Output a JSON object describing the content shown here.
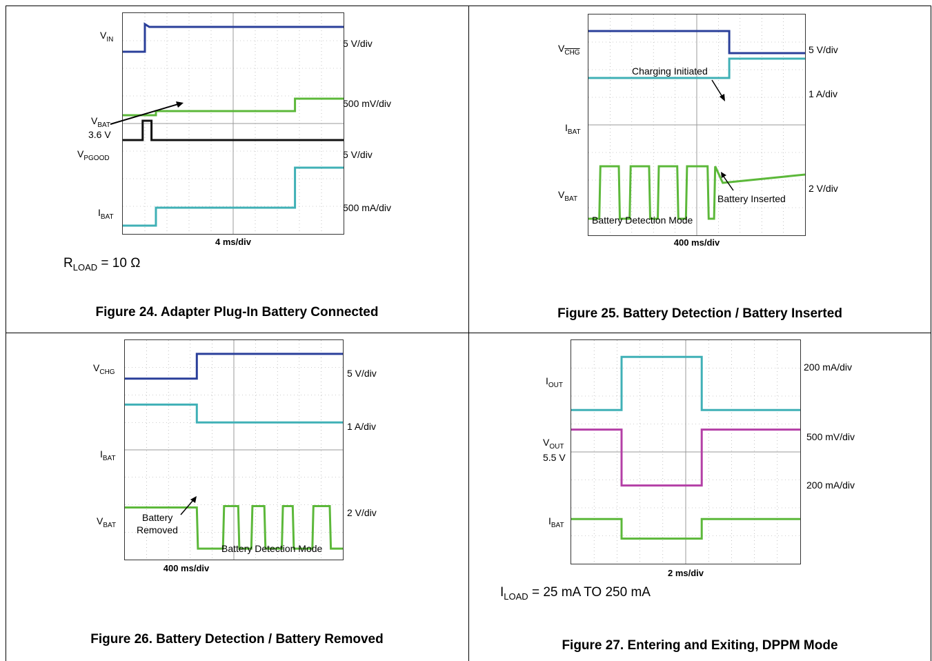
{
  "colors": {
    "blue": "#2a3f9a",
    "magenta": "#b43fa6",
    "green": "#5cb83a",
    "cyan": "#3fb0b6",
    "black": "#111111",
    "grid": "#9a9a9a"
  },
  "figures": [
    {
      "id": "fig24",
      "caption": "Figure 24. Adapter Plug-In Battery Connected",
      "timebase": "4 ms/div",
      "note_main": "R",
      "note_sub": "LOAD",
      "note_rest": " = 10 Ω",
      "labels": {
        "vin_main": "V",
        "vin_sub": "IN",
        "vbat_main": "V",
        "vbat_sub": "BAT",
        "vbat_val": "3.6 V",
        "vpgood_main": "V",
        "vpgood_sub": "PGOOD",
        "ibat_main": "I",
        "ibat_sub": "BAT"
      },
      "scales": [
        "5 V/div",
        "500 mV/div",
        "5 V/div",
        "500 mA/div"
      ]
    },
    {
      "id": "fig25",
      "caption": "Figure 25. Battery Detection / Battery Inserted",
      "timebase": "400 ms/div",
      "labels": {
        "vchg_main": "V",
        "vchg_sub": "CHG",
        "ibat_main": "I",
        "ibat_sub": "BAT",
        "vbat_main": "V",
        "vbat_sub": "BAT"
      },
      "annotations": [
        "Charging Initiated",
        "Battery Inserted",
        "Battery Detection Mode"
      ],
      "scales": [
        "5 V/div",
        "1 A/div",
        "2 V/div"
      ]
    },
    {
      "id": "fig26",
      "caption": "Figure 26. Battery Detection / Battery Removed",
      "timebase": "400 ms/div",
      "labels": {
        "vchg_main": "V",
        "vchg_sub": "CHG",
        "ibat_main": "I",
        "ibat_sub": "BAT",
        "vbat_main": "V",
        "vbat_sub": "BAT"
      },
      "annotations": [
        "Battery",
        "Removed",
        "Battery Detection Mode"
      ],
      "scales": [
        "5 V/div",
        "1 A/div",
        "2 V/div"
      ]
    },
    {
      "id": "fig27",
      "caption": "Figure 27. Entering and Exiting, DPPM Mode",
      "timebase": "2 ms/div",
      "note_main": "I",
      "note_sub": "LOAD",
      "note_rest": " = 25 mA TO 250 mA",
      "labels": {
        "iout_main": "I",
        "iout_sub": "OUT",
        "vout_main": "V",
        "vout_sub": "OUT",
        "vout_val": "5.5 V",
        "ibat_main": "I",
        "ibat_sub": "BAT"
      },
      "scales": [
        "200 mA/div",
        "500 mV/div",
        "200 mA/div"
      ]
    }
  ],
  "chart_data": [
    {
      "type": "line",
      "title": "Figure 24. Adapter Plug-In Battery Connected",
      "x_unit": "div",
      "xlim": [
        0,
        10
      ],
      "ylim": [
        0,
        8
      ],
      "series": [
        {
          "name": "VIN",
          "x": [
            0,
            1.0,
            1.0,
            1.2,
            10
          ],
          "y": [
            6.6,
            6.6,
            7.6,
            7.5,
            7.5
          ]
        },
        {
          "name": "VPGOOD",
          "x": [
            0,
            0.9,
            0.9,
            1.3,
            1.3,
            10
          ],
          "y": [
            3.4,
            3.4,
            4.1,
            4.1,
            3.4,
            3.4
          ]
        },
        {
          "name": "VBAT",
          "x": [
            0,
            1.5,
            1.5,
            7.8,
            7.8,
            10
          ],
          "y": [
            4.3,
            4.3,
            4.45,
            4.45,
            4.9,
            4.9
          ]
        },
        {
          "name": "IBAT",
          "x": [
            0,
            1.5,
            1.5,
            7.8,
            7.8,
            10
          ],
          "y": [
            0.3,
            0.3,
            0.95,
            0.95,
            2.4,
            2.4
          ]
        }
      ]
    },
    {
      "type": "line",
      "title": "Figure 25. Battery Detection / Battery Inserted",
      "x_unit": "div",
      "xlim": [
        0,
        10
      ],
      "ylim": [
        0,
        8
      ],
      "series": [
        {
          "name": "VCHG",
          "x": [
            0,
            6.5,
            6.5,
            10
          ],
          "y": [
            7.4,
            7.4,
            6.6,
            6.6
          ]
        },
        {
          "name": "IBAT",
          "x": [
            0,
            6.5,
            6.5,
            10
          ],
          "y": [
            5.7,
            5.7,
            6.4,
            6.4
          ]
        },
        {
          "name": "VBAT",
          "x": [
            0,
            0.5,
            0.55,
            1.4,
            1.45,
            1.9,
            1.95,
            2.8,
            2.85,
            3.2,
            3.25,
            4.1,
            4.15,
            4.5,
            4.55,
            5.5,
            5.55,
            5.8,
            5.85,
            6.2,
            10
          ],
          "y": [
            0.6,
            0.6,
            2.5,
            2.5,
            0.6,
            0.6,
            2.5,
            2.5,
            0.6,
            0.6,
            2.5,
            2.5,
            0.6,
            0.6,
            2.5,
            2.5,
            0.6,
            0.6,
            2.5,
            1.9,
            2.2
          ]
        }
      ]
    },
    {
      "type": "line",
      "title": "Figure 26. Battery Detection / Battery Removed",
      "x_unit": "div",
      "xlim": [
        0,
        10
      ],
      "ylim": [
        0,
        8
      ],
      "series": [
        {
          "name": "VCHG",
          "x": [
            0,
            3.3,
            3.3,
            10
          ],
          "y": [
            6.6,
            6.6,
            7.5,
            7.5
          ]
        },
        {
          "name": "IBAT",
          "x": [
            0,
            3.3,
            3.3,
            10
          ],
          "y": [
            5.65,
            5.65,
            5.0,
            5.0
          ]
        },
        {
          "name": "VBAT",
          "x": [
            0,
            3.3,
            3.35,
            4.5,
            4.55,
            5.2,
            5.25,
            5.8,
            5.85,
            6.4,
            6.45,
            7.2,
            7.25,
            7.7,
            7.75,
            8.6,
            8.65,
            9.4,
            9.45,
            10
          ],
          "y": [
            1.9,
            1.9,
            0.4,
            0.4,
            1.95,
            1.95,
            0.4,
            0.4,
            1.95,
            1.95,
            0.4,
            0.4,
            1.95,
            1.95,
            0.4,
            0.4,
            1.95,
            1.95,
            0.4,
            0.4
          ]
        }
      ]
    },
    {
      "type": "line",
      "title": "Figure 27. Entering and Exiting, DPPM Mode",
      "x_unit": "div",
      "xlim": [
        0,
        10
      ],
      "ylim": [
        0,
        8
      ],
      "series": [
        {
          "name": "IOUT",
          "x": [
            0,
            2.2,
            2.2,
            5.7,
            5.7,
            10
          ],
          "y": [
            5.5,
            5.5,
            7.4,
            7.4,
            5.5,
            5.5
          ]
        },
        {
          "name": "VOUT",
          "x": [
            0,
            2.2,
            2.2,
            5.7,
            5.7,
            10
          ],
          "y": [
            4.8,
            4.8,
            2.8,
            2.8,
            4.8,
            4.8
          ]
        },
        {
          "name": "IBAT",
          "x": [
            0,
            2.2,
            2.2,
            5.7,
            5.7,
            10
          ],
          "y": [
            1.6,
            1.6,
            0.9,
            0.9,
            1.6,
            1.6
          ]
        }
      ]
    }
  ]
}
